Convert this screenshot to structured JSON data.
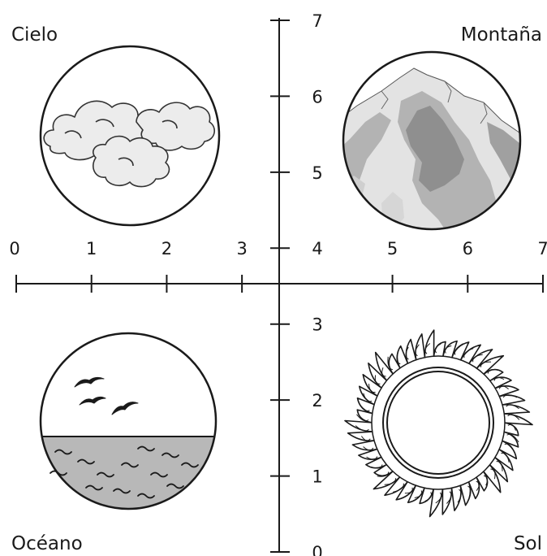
{
  "quadrants": {
    "top_left": {
      "label": "Cielo",
      "picture": "clouds"
    },
    "top_right": {
      "label": "Montaña",
      "picture": "mountain"
    },
    "bottom_left": {
      "label": "Océano",
      "picture": "ocean-with-birds"
    },
    "bottom_right": {
      "label": "Sol",
      "picture": "sun"
    }
  },
  "axes": {
    "x": {
      "ticks": [
        "0",
        "1",
        "2",
        "3",
        "4",
        "5",
        "6",
        "7"
      ]
    },
    "y": {
      "ticks": [
        "0",
        "1",
        "2",
        "3",
        "4",
        "5",
        "6",
        "7"
      ]
    }
  },
  "colors": {
    "ink": "#1a1a1a",
    "cloud_fill": "#ececec",
    "mountain_light": "#e3e3e3",
    "mountain_mid": "#b3b3b3",
    "mountain_dark": "#8f8f8f",
    "water": "#b8b8b8"
  }
}
